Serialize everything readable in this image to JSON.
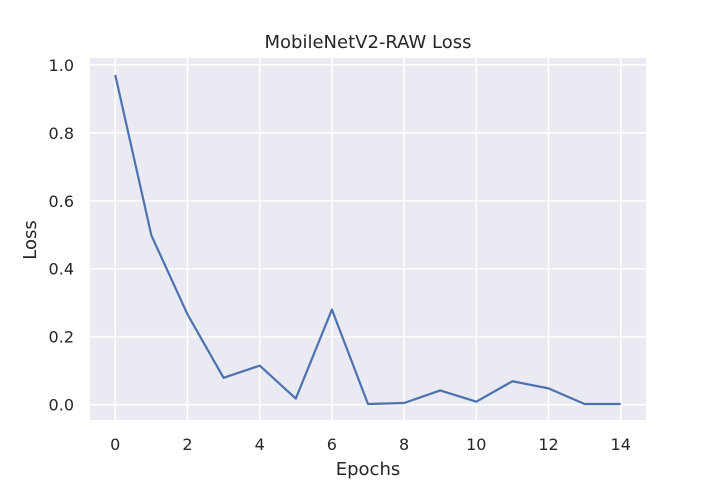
{
  "chart_data": {
    "type": "line",
    "title": "MobileNetV2-RAW Loss",
    "xlabel": "Epochs",
    "ylabel": "Loss",
    "xlim": [
      -0.7,
      14.7
    ],
    "ylim": [
      -0.045,
      1.02
    ],
    "x_ticks": [
      0,
      2,
      4,
      6,
      8,
      10,
      12,
      14
    ],
    "x_tick_labels": [
      "0",
      "2",
      "4",
      "6",
      "8",
      "10",
      "12",
      "14"
    ],
    "y_ticks": [
      0.0,
      0.2,
      0.4,
      0.6,
      0.8,
      1.0
    ],
    "y_tick_labels": [
      "0.0",
      "0.2",
      "0.4",
      "0.6",
      "0.8",
      "1.0"
    ],
    "grid": true,
    "series": [
      {
        "color": "#4c72b0",
        "x": [
          0,
          1,
          2,
          3,
          4,
          5,
          6,
          7,
          8,
          9,
          10,
          11,
          12,
          13,
          14
        ],
        "values": [
          0.97,
          0.498,
          0.266,
          0.079,
          0.115,
          0.018,
          0.28,
          0.002,
          0.005,
          0.042,
          0.009,
          0.069,
          0.048,
          0.002,
          0.002
        ]
      }
    ]
  }
}
